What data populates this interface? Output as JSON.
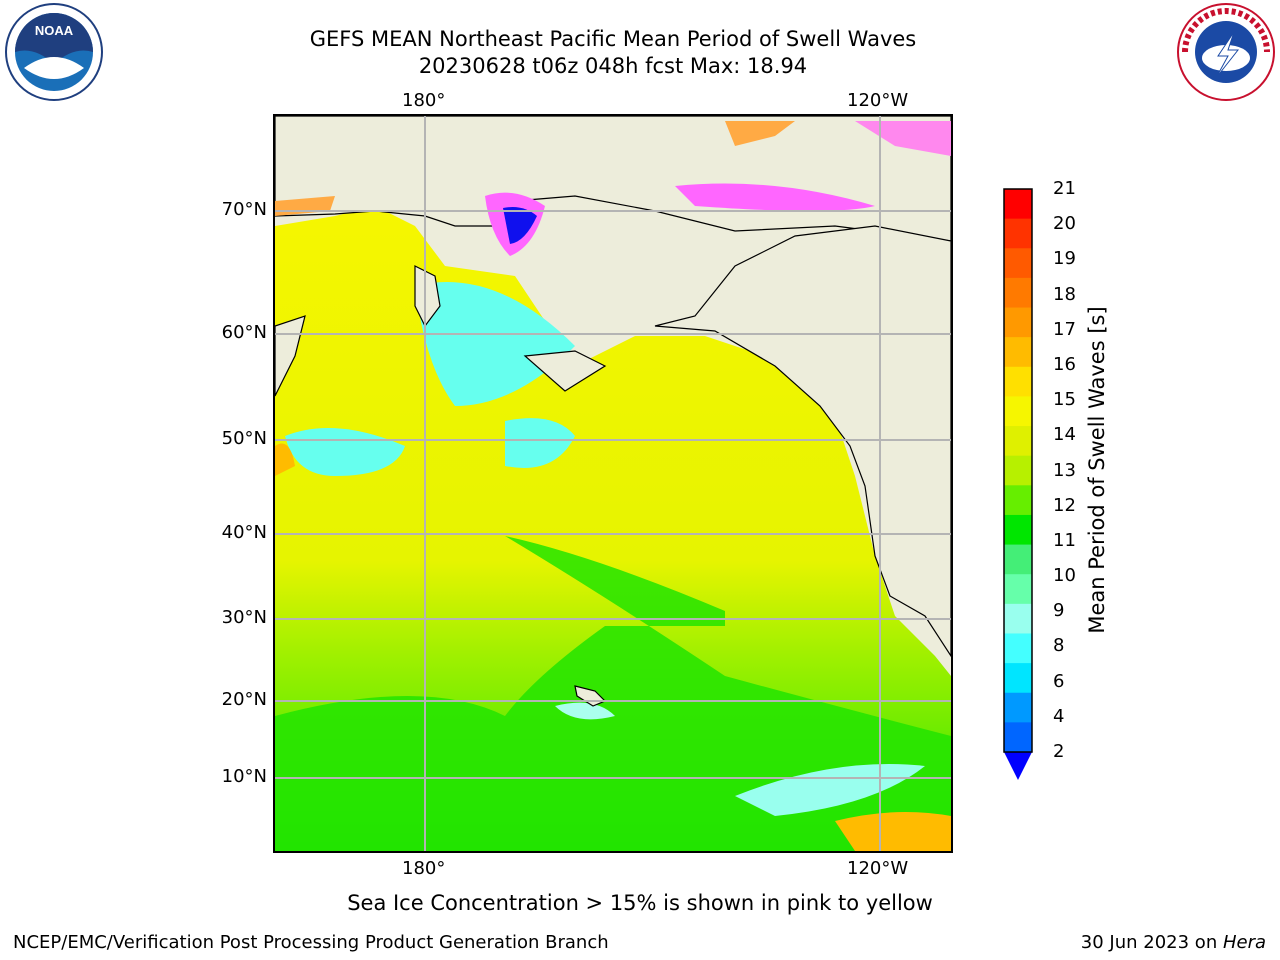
{
  "header": {
    "title_line1": "GEFS MEAN Northeast Pacific Mean Period of Swell Waves",
    "title_line2": "20230628 t06z 048h fcst   Max: 18.94"
  },
  "logos": {
    "left": "NOAA",
    "right": "NATIONAL WEATHER SERVICE"
  },
  "map": {
    "lon_labels_top": [
      "180°",
      "120°W"
    ],
    "lon_labels_bottom": [
      "180°",
      "120°W"
    ],
    "lat_labels": [
      "70°N",
      "60°N",
      "50°N",
      "40°N",
      "30°N",
      "20°N",
      "10°N"
    ],
    "land_color": "#ededdb"
  },
  "colorbar": {
    "title": "Mean Period of Swell Waves [s]",
    "ticks": [
      "21",
      "20",
      "19",
      "18",
      "17",
      "16",
      "15",
      "14",
      "13",
      "12",
      "11",
      "10",
      "9",
      "8",
      "6",
      "4",
      "2"
    ],
    "colors_top_to_bottom": [
      "#ff0000",
      "#ff3300",
      "#ff5a00",
      "#ff7a00",
      "#ff9900",
      "#ffbb00",
      "#ffe000",
      "#f6f600",
      "#dff000",
      "#b7f000",
      "#66ee00",
      "#00e600",
      "#44ee77",
      "#66ffaa",
      "#99ffee",
      "#44ffff",
      "#00e5ff",
      "#0099ff",
      "#0066ff"
    ],
    "under_color": "#0000ff"
  },
  "note": "Sea Ice Concentration > 15% is shown in pink to yellow",
  "footer": {
    "left": "NCEP/EMC/Verification Post Processing Product Generation Branch",
    "right_date": "30 Jun 2023 on ",
    "right_machine": "Hera"
  }
}
